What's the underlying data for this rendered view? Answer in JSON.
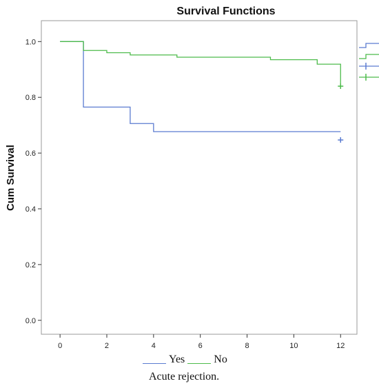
{
  "chart_data": {
    "type": "line",
    "title": "Survival Functions",
    "xlabel": "Acute rejection.",
    "ylabel": "Cum Survival",
    "xlim": [
      -0.8,
      12.7
    ],
    "ylim": [
      -0.05,
      1.075
    ],
    "x_ticks": [
      0,
      2,
      4,
      6,
      8,
      10,
      12
    ],
    "x_tick_labels": [
      "0",
      "2",
      "4",
      "6",
      "8",
      "10",
      "12"
    ],
    "y_ticks": [
      0.0,
      0.2,
      0.4,
      0.6,
      0.8,
      1.0
    ],
    "y_tick_labels": [
      "0.0",
      "0.2",
      "0.4",
      "0.6",
      "0.8",
      "1.0"
    ],
    "grid": false,
    "legend_position": "bottom",
    "series": [
      {
        "name": "Yes",
        "color": "#5a7bd0",
        "steps": [
          [
            0,
            1.0
          ],
          [
            1,
            0.765
          ],
          [
            3,
            0.706
          ],
          [
            4,
            0.677
          ],
          [
            12,
            0.677
          ]
        ],
        "end_x": 12,
        "censored": [
          [
            12,
            0.647
          ]
        ]
      },
      {
        "name": "No",
        "color": "#4cbb4a",
        "steps": [
          [
            0,
            1.0
          ],
          [
            1,
            0.968
          ],
          [
            2,
            0.96
          ],
          [
            3,
            0.952
          ],
          [
            5,
            0.944
          ],
          [
            9,
            0.935
          ],
          [
            11,
            0.919
          ],
          [
            12,
            0.845
          ]
        ],
        "end_x": 12,
        "censored": [
          [
            12,
            0.84
          ]
        ]
      }
    ]
  }
}
